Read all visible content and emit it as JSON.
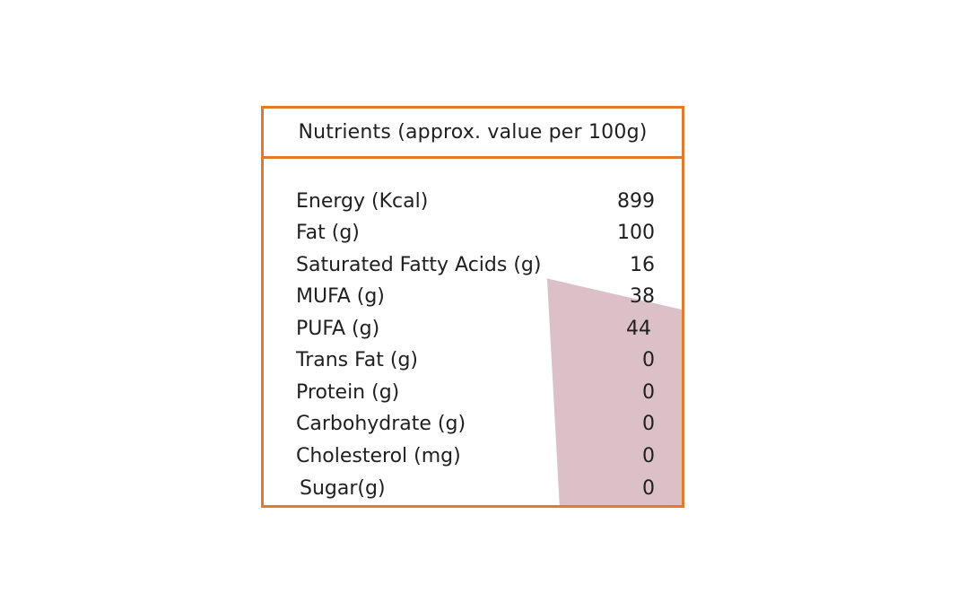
{
  "colors": {
    "border": "#e07a2e",
    "stain": "#dcc0c8",
    "text": "#1f1f1f"
  },
  "table": {
    "title": "Nutrients (approx. value per 100g)",
    "rows": [
      {
        "label": "Energy (Kcal)",
        "value": "899"
      },
      {
        "label": "Fat (g)",
        "value": "100"
      },
      {
        "label": "Saturated Fatty Acids (g)",
        "value": "16"
      },
      {
        "label": "MUFA (g)",
        "value": "38"
      },
      {
        "label": "PUFA (g)",
        "value": "44"
      },
      {
        "label": "Trans Fat (g)",
        "value": "0"
      },
      {
        "label": "Protein (g)",
        "value": "0"
      },
      {
        "label": "Carbohydrate (g)",
        "value": "0"
      },
      {
        "label": "Cholesterol (mg)",
        "value": "0"
      },
      {
        "label": "Sugar(g)",
        "value": "0"
      }
    ]
  }
}
